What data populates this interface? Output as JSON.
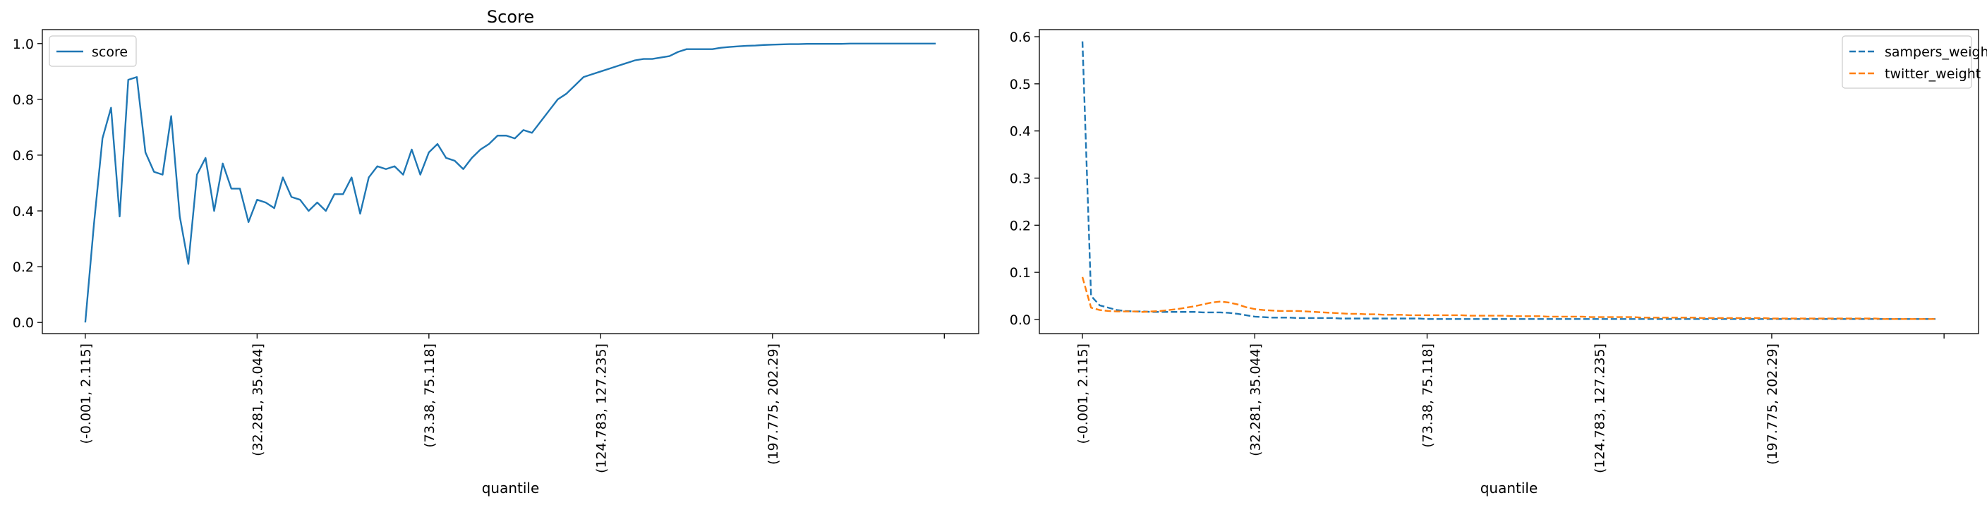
{
  "chart_data": [
    {
      "type": "line",
      "title": "Score",
      "xlabel": "quantile",
      "ylabel": "",
      "ylim": [
        -0.04,
        1.05
      ],
      "yticks": [
        "0.0",
        "0.2",
        "0.4",
        "0.6",
        "0.8",
        "1.0"
      ],
      "ytick_values": [
        0,
        0.2,
        0.4,
        0.6,
        0.8,
        1.0
      ],
      "xtick_labels": [
        "(-0.001, 2.115]",
        "(32.281, 35.044]",
        "(73.38, 75.118]",
        "(124.783, 127.235]",
        "(197.775, 202.29]",
        ""
      ],
      "xtick_positions": [
        0,
        20,
        40,
        60,
        80,
        100
      ],
      "xlim": [
        -5,
        104
      ],
      "legend": "upper left",
      "series": [
        {
          "name": "score",
          "color": "#1f77b4",
          "style": "solid",
          "values": [
            0.0,
            0.35,
            0.66,
            0.77,
            0.38,
            0.87,
            0.88,
            0.61,
            0.54,
            0.53,
            0.74,
            0.38,
            0.21,
            0.53,
            0.59,
            0.4,
            0.57,
            0.48,
            0.48,
            0.36,
            0.44,
            0.43,
            0.41,
            0.52,
            0.45,
            0.44,
            0.4,
            0.43,
            0.4,
            0.46,
            0.46,
            0.52,
            0.39,
            0.52,
            0.56,
            0.55,
            0.56,
            0.53,
            0.62,
            0.53,
            0.61,
            0.64,
            0.59,
            0.58,
            0.55,
            0.59,
            0.62,
            0.64,
            0.67,
            0.67,
            0.66,
            0.69,
            0.68,
            0.72,
            0.76,
            0.8,
            0.82,
            0.85,
            0.88,
            0.89,
            0.9,
            0.91,
            0.92,
            0.93,
            0.94,
            0.945,
            0.945,
            0.95,
            0.955,
            0.97,
            0.98,
            0.98,
            0.98,
            0.98,
            0.985,
            0.988,
            0.99,
            0.992,
            0.993,
            0.995,
            0.996,
            0.997,
            0.998,
            0.998,
            0.999,
            0.999,
            0.999,
            0.999,
            0.999,
            1.0,
            1.0,
            1.0,
            1.0,
            1.0,
            1.0,
            1.0,
            1.0,
            1.0,
            1.0,
            1.0
          ]
        }
      ]
    },
    {
      "type": "line",
      "title": "",
      "xlabel": "quantile",
      "ylabel": "",
      "ylim": [
        -0.03,
        0.615
      ],
      "yticks": [
        "0.0",
        "0.1",
        "0.2",
        "0.3",
        "0.4",
        "0.5",
        "0.6"
      ],
      "ytick_values": [
        0,
        0.1,
        0.2,
        0.3,
        0.4,
        0.5,
        0.6
      ],
      "xtick_labels": [
        "(-0.001, 2.115]",
        "(32.281, 35.044]",
        "(73.38, 75.118]",
        "(124.783, 127.235]",
        "(197.775, 202.29]",
        ""
      ],
      "xtick_positions": [
        0,
        20,
        40,
        60,
        80,
        100
      ],
      "xlim": [
        -5,
        104
      ],
      "legend": "upper right",
      "series": [
        {
          "name": "sampers_weight",
          "color": "#1f77b4",
          "style": "dashed",
          "values": [
            0.59,
            0.05,
            0.03,
            0.025,
            0.02,
            0.018,
            0.017,
            0.017,
            0.016,
            0.016,
            0.016,
            0.016,
            0.016,
            0.016,
            0.015,
            0.015,
            0.015,
            0.014,
            0.012,
            0.009,
            0.006,
            0.005,
            0.004,
            0.004,
            0.004,
            0.003,
            0.003,
            0.003,
            0.003,
            0.003,
            0.002,
            0.002,
            0.002,
            0.002,
            0.002,
            0.002,
            0.002,
            0.002,
            0.002,
            0.002,
            0.001,
            0.001,
            0.001,
            0.001,
            0.001,
            0.001,
            0.001,
            0.001,
            0.001,
            0.001,
            0.001,
            0.001,
            0.001,
            0.001,
            0.001,
            0.001,
            0.001,
            0.001,
            0.001,
            0.001,
            0.001,
            0.001,
            0.001,
            0.001,
            0.001,
            0.001,
            0.001,
            0.001,
            0.001,
            0.001,
            0.001,
            0.001,
            0.001,
            0.001,
            0.001,
            0.001,
            0.001,
            0.001,
            0.001,
            0.001,
            0.001,
            0.001,
            0.001,
            0.001,
            0.001,
            0.001,
            0.001,
            0.001,
            0.001,
            0.001,
            0.001,
            0.001,
            0.001,
            0.001,
            0.001,
            0.001,
            0.001,
            0.001,
            0.001,
            0.001
          ]
        },
        {
          "name": "twitter_weight",
          "color": "#ff7f0e",
          "style": "dashed",
          "values": [
            0.09,
            0.025,
            0.02,
            0.018,
            0.017,
            0.017,
            0.017,
            0.016,
            0.017,
            0.018,
            0.02,
            0.022,
            0.025,
            0.028,
            0.032,
            0.036,
            0.038,
            0.036,
            0.032,
            0.026,
            0.022,
            0.02,
            0.019,
            0.018,
            0.018,
            0.018,
            0.017,
            0.016,
            0.015,
            0.014,
            0.013,
            0.012,
            0.012,
            0.011,
            0.011,
            0.01,
            0.01,
            0.01,
            0.009,
            0.009,
            0.009,
            0.009,
            0.009,
            0.009,
            0.009,
            0.008,
            0.008,
            0.008,
            0.008,
            0.008,
            0.007,
            0.007,
            0.007,
            0.007,
            0.006,
            0.006,
            0.006,
            0.006,
            0.006,
            0.005,
            0.005,
            0.005,
            0.005,
            0.005,
            0.005,
            0.004,
            0.004,
            0.004,
            0.004,
            0.004,
            0.004,
            0.004,
            0.003,
            0.003,
            0.003,
            0.003,
            0.003,
            0.003,
            0.003,
            0.003,
            0.002,
            0.002,
            0.002,
            0.002,
            0.002,
            0.002,
            0.002,
            0.002,
            0.002,
            0.002,
            0.002,
            0.002,
            0.002,
            0.001,
            0.001,
            0.001,
            0.001,
            0.001,
            0.001,
            0.001
          ]
        }
      ]
    }
  ]
}
